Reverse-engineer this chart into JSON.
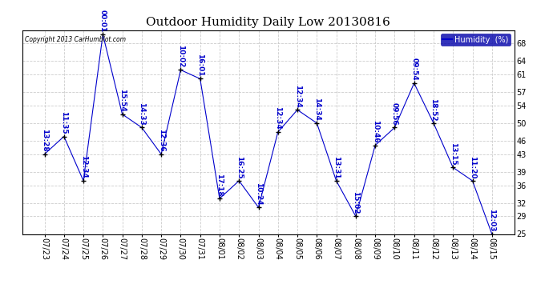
{
  "title": "Outdoor Humidity Daily Low 20130816",
  "copyright_text": "Copyright 2013 CarHumblot.com",
  "legend_label": "Humidity  (%)",
  "background_color": "#ffffff",
  "plot_bg_color": "#ffffff",
  "grid_color": "#cccccc",
  "line_color": "#0000cc",
  "marker_color": "#000000",
  "label_color": "#0000cc",
  "x_labels": [
    "07/23",
    "07/24",
    "07/25",
    "07/26",
    "07/27",
    "07/28",
    "07/29",
    "07/30",
    "07/31",
    "08/01",
    "08/02",
    "08/03",
    "08/04",
    "08/05",
    "08/06",
    "08/07",
    "08/08",
    "08/09",
    "08/10",
    "08/11",
    "08/12",
    "08/13",
    "08/14",
    "08/15"
  ],
  "y_values": [
    43,
    47,
    37,
    70,
    52,
    49,
    43,
    62,
    60,
    33,
    37,
    31,
    48,
    53,
    50,
    37,
    29,
    45,
    49,
    59,
    50,
    40,
    37,
    25
  ],
  "time_labels": [
    "13:28",
    "11:35",
    "12:34",
    "00:01",
    "15:54",
    "14:33",
    "12:36",
    "10:02",
    "16:01",
    "17:18",
    "16:25",
    "10:24",
    "12:34",
    "12:34",
    "14:34",
    "13:31",
    "15:02",
    "10:46",
    "09:56",
    "09:54",
    "18:52",
    "13:15",
    "11:20",
    "12:03"
  ],
  "ylim": [
    25,
    71
  ],
  "yticks": [
    25,
    29,
    32,
    36,
    39,
    43,
    46,
    50,
    54,
    57,
    61,
    64,
    68
  ],
  "title_fontsize": 11,
  "tick_fontsize": 7,
  "label_fontsize": 6.5
}
